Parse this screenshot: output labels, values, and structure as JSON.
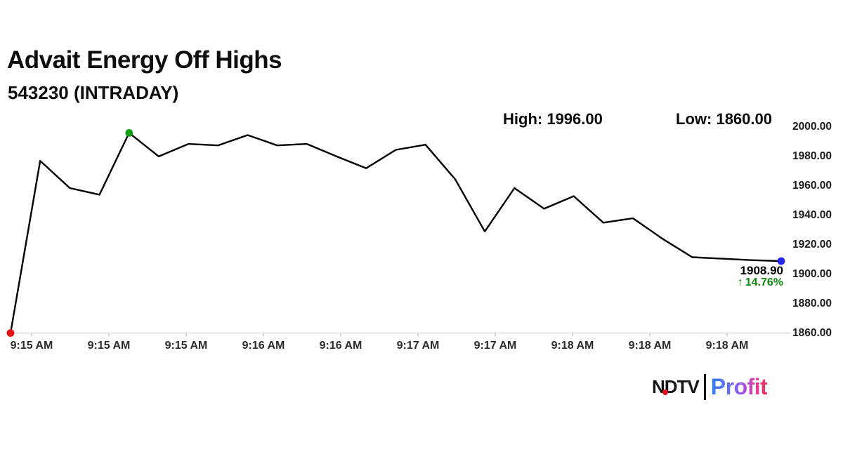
{
  "header": {
    "title": "Advait Energy Off Highs",
    "subtitle": "543230 (INTRADAY)"
  },
  "stats": {
    "high_label": "High:",
    "high_value": "1996.00",
    "low_label": "Low:",
    "low_value": "1860.00"
  },
  "annotation": {
    "last_price": "1908.90",
    "arrow": "↑",
    "change_pct": "14.76%"
  },
  "brand": {
    "ndtv": "NDTV",
    "profit": "Profit"
  },
  "colors": {
    "line": "#000000",
    "start_dot": "#e81111",
    "high_dot": "#12a012",
    "end_dot": "#2525ee",
    "change_green": "#0f8a0f",
    "axis_line": "#d9d9d9",
    "tick_mark": "#c8c8c8"
  },
  "chart_data": {
    "type": "line",
    "title": "Advait Energy Off Highs",
    "subtitle": "543230 (INTRADAY)",
    "x_tick_labels": [
      "9:15 AM",
      "9:15 AM",
      "9:15 AM",
      "9:16 AM",
      "9:16 AM",
      "9:17 AM",
      "9:17 AM",
      "9:18 AM",
      "9:18 AM",
      "9:18 AM"
    ],
    "y_tick_labels": [
      "2000.00",
      "1980.00",
      "1960.00",
      "1940.00",
      "1920.00",
      "1900.00",
      "1880.00",
      "1860.00"
    ],
    "ylim": [
      1860,
      2000
    ],
    "high": 1996.0,
    "low": 1860.0,
    "last": 1908.9,
    "change_pct": 14.76,
    "values": [
      1860,
      1977,
      1958.5,
      1954,
      1996,
      1980,
      1988.5,
      1987.5,
      1994.5,
      1987.5,
      1988.5,
      1980,
      1972,
      1984.5,
      1988,
      1964.5,
      1929,
      1958.5,
      1944.5,
      1953,
      1935,
      1938,
      1924,
      1911.5,
      1910.5,
      1909.5,
      1908.9
    ],
    "markers": {
      "start_index": 0,
      "high_index": 4,
      "end_index": 26
    },
    "grid": false,
    "legend": false
  }
}
